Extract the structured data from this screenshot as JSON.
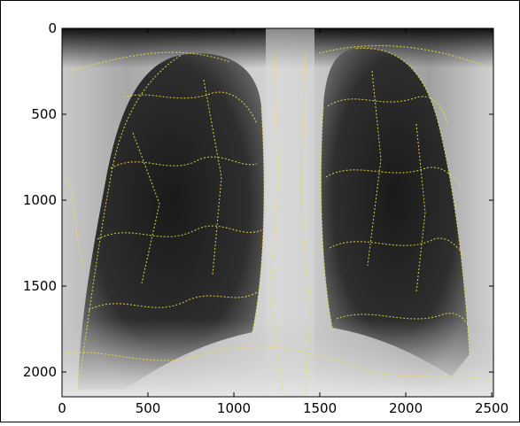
{
  "chart_data": {
    "type": "image",
    "xlim": [
      0,
      2510
    ],
    "ylim": [
      2144,
      0
    ],
    "xticks": [
      0,
      500,
      1000,
      1500,
      2000,
      2500
    ],
    "yticks": [
      0,
      500,
      1000,
      1500,
      2000
    ]
  }
}
